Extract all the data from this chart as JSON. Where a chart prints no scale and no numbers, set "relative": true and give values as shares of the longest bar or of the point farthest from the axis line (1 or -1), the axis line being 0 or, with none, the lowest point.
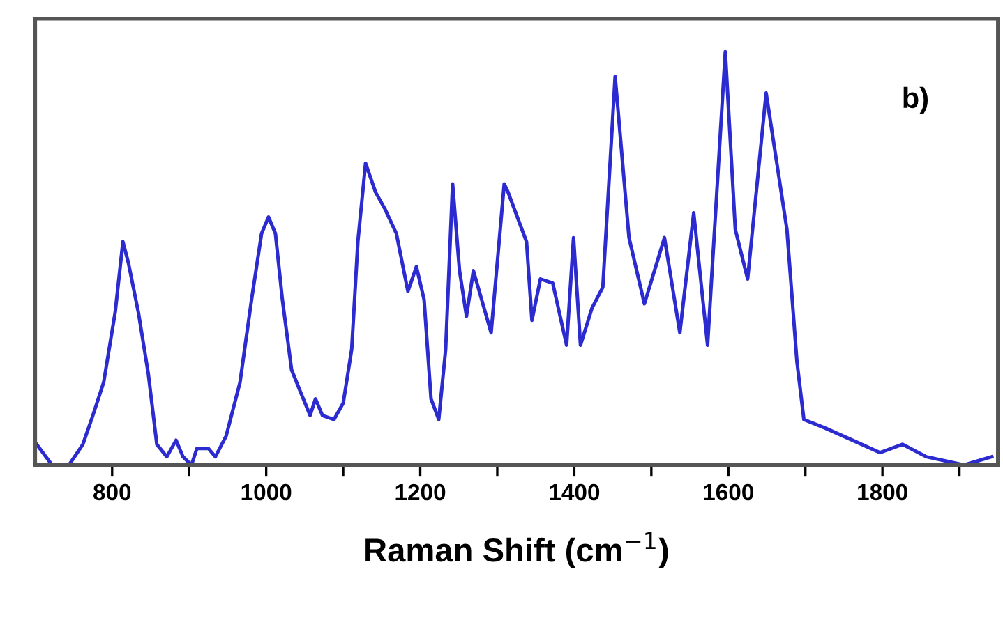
{
  "chart_data": {
    "type": "line",
    "relative": true,
    "xlabel": "Raman Shift (cm$^{−1}$)",
    "annotations": [
      "b)"
    ],
    "x": [
      702,
      722,
      744,
      762,
      775,
      789,
      804,
      814,
      821,
      834,
      847,
      858,
      871,
      883,
      892,
      903,
      910,
      925,
      934,
      948,
      966,
      981,
      994,
      1003,
      1012,
      1021,
      1033,
      1046,
      1057,
      1064,
      1073,
      1088,
      1100,
      1111,
      1119,
      1129,
      1142,
      1154,
      1169,
      1184,
      1195,
      1205,
      1214,
      1224,
      1233,
      1242,
      1251,
      1260,
      1269,
      1292,
      1309,
      1314,
      1338,
      1345,
      1356,
      1372,
      1390,
      1399,
      1408,
      1423,
      1437,
      1453,
      1471,
      1491,
      1517,
      1537,
      1555,
      1573,
      1596,
      1609,
      1625,
      1649,
      1676,
      1689,
      1698,
      1725,
      1761,
      1797,
      1826,
      1857,
      1906,
      1942
    ],
    "series": [
      {
        "color": "#2b2bd0",
        "values": [
          0.05,
          0,
          0,
          0.05,
          0.12,
          0.2,
          0.37,
          0.54,
          0.49,
          0.37,
          0.22,
          0.05,
          0.02,
          0.06,
          0.02,
          0,
          0.04,
          0.04,
          0.02,
          0.07,
          0.2,
          0.4,
          0.56,
          0.6,
          0.56,
          0.4,
          0.23,
          0.17,
          0.12,
          0.16,
          0.12,
          0.11,
          0.15,
          0.28,
          0.54,
          0.73,
          0.66,
          0.62,
          0.56,
          0.42,
          0.48,
          0.4,
          0.16,
          0.11,
          0.28,
          0.68,
          0.47,
          0.36,
          0.47,
          0.32,
          0.68,
          0.66,
          0.54,
          0.35,
          0.45,
          0.44,
          0.29,
          0.55,
          0.29,
          0.38,
          0.43,
          0.94,
          0.55,
          0.39,
          0.55,
          0.32,
          0.61,
          0.29,
          1.0,
          0.57,
          0.45,
          0.9,
          0.57,
          0.25,
          0.11,
          0.09,
          0.06,
          0.03,
          0.05,
          0.02,
          0,
          0.02
        ]
      }
    ],
    "xlim": [
      700,
      1950
    ],
    "xticks": [
      800,
      {
        "value": 900,
        "label": null
      },
      1000,
      {
        "value": 1100,
        "label": null
      },
      1200,
      {
        "value": 1300,
        "label": null
      },
      1400,
      {
        "value": 1500,
        "label": null
      },
      1600,
      {
        "value": 1700,
        "label": null
      },
      1800,
      {
        "value": 1900,
        "label": null
      }
    ],
    "tick_labels": "x",
    "grid": false,
    "legend": false,
    "marker": "none",
    "line_style": "solid"
  }
}
